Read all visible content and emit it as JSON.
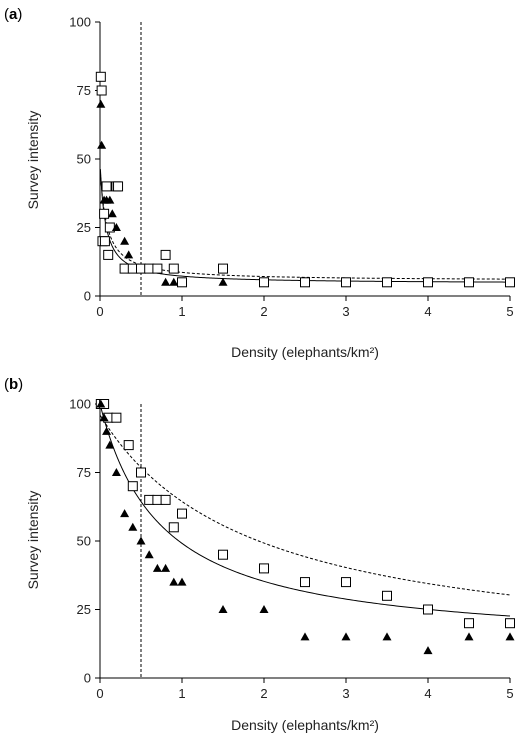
{
  "chart_data": [
    {
      "type": "scatter",
      "panel_label": "a",
      "xlabel": "Density (elephants/km²)",
      "ylabel": "Survey intensity",
      "xlim": [
        0,
        5
      ],
      "ylim": [
        0,
        100
      ],
      "xticks": [
        0,
        1,
        2,
        3,
        4,
        5
      ],
      "yticks": [
        0,
        25,
        50,
        75,
        100
      ],
      "reference_line_x": 0.5,
      "series": [
        {
          "marker": "open-square",
          "fit_line": "dashed",
          "points": [
            [
              0.01,
              80
            ],
            [
              0.02,
              75
            ],
            [
              0.03,
              20
            ],
            [
              0.05,
              30
            ],
            [
              0.06,
              20
            ],
            [
              0.08,
              40
            ],
            [
              0.1,
              15
            ],
            [
              0.12,
              25
            ],
            [
              0.2,
              40
            ],
            [
              0.22,
              40
            ],
            [
              0.3,
              10
            ],
            [
              0.4,
              10
            ],
            [
              0.5,
              10
            ],
            [
              0.6,
              10
            ],
            [
              0.7,
              10
            ],
            [
              0.8,
              15
            ],
            [
              0.9,
              10
            ],
            [
              1.0,
              5
            ],
            [
              1.5,
              10
            ],
            [
              2.0,
              5
            ],
            [
              2.5,
              5
            ],
            [
              3.0,
              5
            ],
            [
              3.5,
              5
            ],
            [
              4.0,
              5
            ],
            [
              4.5,
              5
            ],
            [
              5.0,
              5
            ]
          ],
          "fit": {
            "a": 5.5,
            "b": 42,
            "k": 0.08
          }
        },
        {
          "marker": "filled-triangle",
          "fit_line": "solid",
          "points": [
            [
              0.01,
              70
            ],
            [
              0.02,
              55
            ],
            [
              0.05,
              35
            ],
            [
              0.08,
              35
            ],
            [
              0.12,
              35
            ],
            [
              0.15,
              30
            ],
            [
              0.2,
              25
            ],
            [
              0.3,
              20
            ],
            [
              0.35,
              15
            ],
            [
              0.8,
              5
            ],
            [
              0.9,
              5
            ],
            [
              1.5,
              5
            ]
          ],
          "fit": {
            "a": 4.5,
            "b": 45,
            "k": 0.065
          }
        }
      ]
    },
    {
      "type": "scatter",
      "panel_label": "b",
      "xlabel": "Density (elephants/km²)",
      "ylabel": "Survey intensity",
      "xlim": [
        0,
        5
      ],
      "ylim": [
        0,
        100
      ],
      "xticks": [
        0,
        1,
        2,
        3,
        4,
        5
      ],
      "yticks": [
        0,
        25,
        50,
        75,
        100
      ],
      "reference_line_x": 0.5,
      "series": [
        {
          "marker": "open-square",
          "fit_line": "dashed",
          "points": [
            [
              0.01,
              100
            ],
            [
              0.05,
              100
            ],
            [
              0.1,
              95
            ],
            [
              0.2,
              95
            ],
            [
              0.35,
              85
            ],
            [
              0.4,
              70
            ],
            [
              0.5,
              75
            ],
            [
              0.6,
              65
            ],
            [
              0.7,
              65
            ],
            [
              0.8,
              65
            ],
            [
              0.9,
              55
            ],
            [
              1.0,
              60
            ],
            [
              1.5,
              45
            ],
            [
              2.0,
              40
            ],
            [
              2.5,
              35
            ],
            [
              3.0,
              35
            ],
            [
              3.5,
              30
            ],
            [
              4.0,
              25
            ],
            [
              4.5,
              20
            ],
            [
              5.0,
              20
            ]
          ],
          "fit": {
            "a": 6,
            "b": 90,
            "k": 1.85
          }
        },
        {
          "marker": "filled-triangle",
          "fit_line": "solid",
          "points": [
            [
              0.01,
              100
            ],
            [
              0.05,
              95
            ],
            [
              0.08,
              90
            ],
            [
              0.12,
              85
            ],
            [
              0.2,
              75
            ],
            [
              0.3,
              60
            ],
            [
              0.4,
              55
            ],
            [
              0.5,
              50
            ],
            [
              0.6,
              45
            ],
            [
              0.7,
              40
            ],
            [
              0.8,
              40
            ],
            [
              0.9,
              35
            ],
            [
              1.0,
              35
            ],
            [
              1.5,
              25
            ],
            [
              2.0,
              25
            ],
            [
              2.5,
              15
            ],
            [
              3.0,
              15
            ],
            [
              3.5,
              15
            ],
            [
              4.0,
              10
            ],
            [
              4.5,
              15
            ],
            [
              5.0,
              15
            ]
          ],
          "fit": {
            "a": 11,
            "b": 89,
            "k": 0.75
          }
        }
      ]
    }
  ]
}
